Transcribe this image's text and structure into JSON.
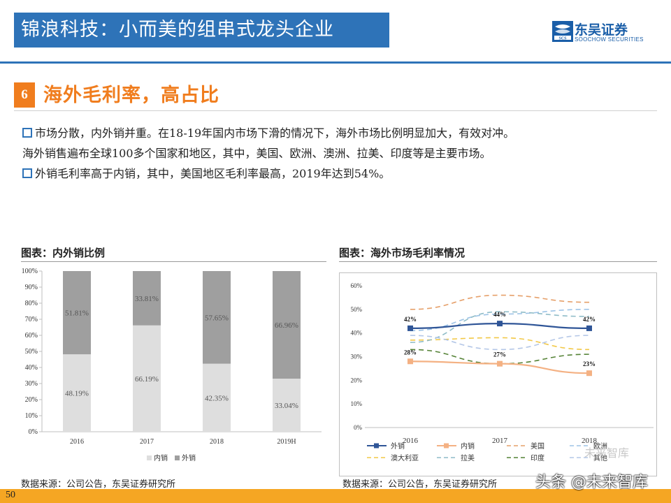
{
  "header": {
    "title": "锦浪科技：小而美的组串式龙头企业",
    "logo_cn": "东吴证券",
    "logo_en": "SOOCHOW SECURITIES",
    "logo_mark": "SCS"
  },
  "section": {
    "number": "6",
    "title": "海外毛利率，高占比"
  },
  "bullets": [
    "市场分散，内外销并重。在18-19年国内市场下滑的情况下，海外市场比例明显加大，有效对冲。",
    "海外销售遍布全球100多个国家和地区，其中，美国、欧洲、澳洲、拉美、印度等是主要市场。",
    "外销毛利率高于内销，其中，美国地区毛利率最高，2019年达到54%。"
  ],
  "charts": {
    "left_title": "图表：内外销比例",
    "right_title": "图表：海外市场毛利率情况",
    "left_source": "数据来源：公司公告，东吴证券研究所",
    "right_source": "数据来源：公司公告，东吴证券研究所"
  },
  "chart_data": [
    {
      "type": "bar",
      "stacked": true,
      "categories": [
        "2016",
        "2017",
        "2018",
        "2019H"
      ],
      "series": [
        {
          "name": "内销",
          "values": [
            48.19,
            66.19,
            42.35,
            33.04
          ],
          "labels": [
            "48.19%",
            "66.19%",
            "42.35%",
            "33.04%"
          ],
          "color": "#dedede"
        },
        {
          "name": "外销",
          "values": [
            51.81,
            33.81,
            57.65,
            66.96
          ],
          "labels": [
            "51.81%",
            "33.81%",
            "57.65%",
            "66.96%"
          ],
          "color": "#9f9f9f"
        }
      ],
      "ylim": [
        0,
        100
      ],
      "yticks": [
        "0%",
        "10%",
        "20%",
        "30%",
        "40%",
        "50%",
        "60%",
        "70%",
        "80%",
        "90%",
        "100%"
      ],
      "legend_position": "bottom"
    },
    {
      "type": "line",
      "x": [
        "2016",
        "2017",
        "2018"
      ],
      "ylim": [
        0,
        60
      ],
      "yticks": [
        "0%",
        "10%",
        "20%",
        "30%",
        "40%",
        "50%",
        "60%"
      ],
      "series": [
        {
          "name": "外销",
          "values": [
            42,
            44,
            42
          ],
          "labels": [
            "42%",
            "44%",
            "42%"
          ],
          "color": "#2f5597",
          "dashed": false,
          "markers": true
        },
        {
          "name": "内销",
          "values": [
            28,
            27,
            23
          ],
          "labels": [
            "28%",
            "27%",
            "23%"
          ],
          "color": "#f4b183",
          "dashed": false,
          "markers": true
        },
        {
          "name": "美国",
          "values": [
            50,
            56,
            53
          ],
          "color": "#e6a06a",
          "dashed": true
        },
        {
          "name": "欧洲",
          "values": [
            41,
            48,
            50
          ],
          "color": "#9dc3e6",
          "dashed": true
        },
        {
          "name": "澳大利亚",
          "values": [
            37,
            38,
            33
          ],
          "color": "#f2c846",
          "dashed": true
        },
        {
          "name": "拉美",
          "values": [
            36,
            49,
            47
          ],
          "color": "#8fbcc8",
          "dashed": true
        },
        {
          "name": "印度",
          "values": [
            33,
            27,
            31
          ],
          "color": "#548235",
          "dashed": true
        },
        {
          "name": "其他",
          "values": [
            39,
            33,
            39
          ],
          "color": "#b4c7e7",
          "dashed": true
        }
      ],
      "legend_position": "bottom"
    }
  ],
  "footer": {
    "page_number": "50",
    "watermark": "头条 @未来智库",
    "watermark_top": "未来智库"
  }
}
